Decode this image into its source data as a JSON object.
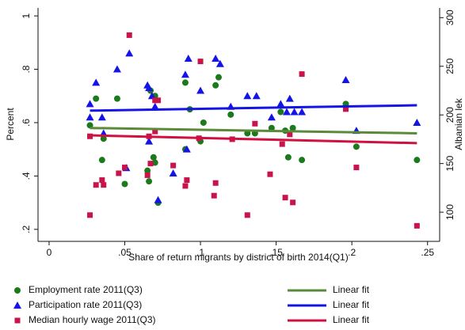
{
  "chart_data": {
    "type": "scatter",
    "xlabel": "Share of return migrants by district of birth 2014(Q1)",
    "ylabel": "Percent",
    "y2label": "Albanian lek",
    "xlim": [
      -0.0073,
      0.258
    ],
    "xticks": [
      0,
      {
        "value": 0.05,
        "label": ".05"
      },
      {
        "value": 0.1,
        "label": ".1"
      },
      {
        "value": 0.15,
        "label": ".15"
      },
      {
        "value": 0.2,
        "label": ".2"
      },
      {
        "value": 0.25,
        "label": ".25"
      }
    ],
    "ylim": [
      0.155,
      1.03
    ],
    "yticks": [
      {
        "value": 0.2,
        "label": ".2"
      },
      {
        "value": 0.4,
        "label": ".4"
      },
      {
        "value": 0.6,
        "label": ".6"
      },
      {
        "value": 0.8,
        "label": ".8"
      },
      1
    ],
    "y2lim": [
      70,
      310
    ],
    "y2ticks": [
      100,
      150,
      200,
      250,
      300
    ],
    "series": [
      {
        "name": "Employment rate 2011(Q3)",
        "color": "#1b7a1b",
        "marker": "circle",
        "axis": "y",
        "x": [
          0.027,
          0.031,
          0.035,
          0.036,
          0.045,
          0.05,
          0.065,
          0.066,
          0.067,
          0.069,
          0.07,
          0.07,
          0.072,
          0.09,
          0.09,
          0.093,
          0.1,
          0.102,
          0.11,
          0.112,
          0.12,
          0.131,
          0.136,
          0.147,
          0.153,
          0.156,
          0.158,
          0.161,
          0.167,
          0.196,
          0.203,
          0.243
        ],
        "values": [
          0.59,
          0.69,
          0.46,
          0.54,
          0.69,
          0.37,
          0.42,
          0.38,
          0.72,
          0.47,
          0.7,
          0.45,
          0.3,
          0.75,
          0.5,
          0.65,
          0.53,
          0.6,
          0.74,
          0.77,
          0.63,
          0.56,
          0.56,
          0.58,
          0.64,
          0.57,
          0.47,
          0.58,
          0.46,
          0.67,
          0.51,
          0.46
        ]
      },
      {
        "name": "Participation rate 2011(Q3)",
        "color": "#1414e6",
        "marker": "triangle",
        "axis": "y",
        "x": [
          0.027,
          0.027,
          0.031,
          0.035,
          0.036,
          0.045,
          0.051,
          0.053,
          0.065,
          0.066,
          0.066,
          0.068,
          0.07,
          0.072,
          0.082,
          0.09,
          0.091,
          0.092,
          0.1,
          0.11,
          0.113,
          0.12,
          0.131,
          0.137,
          0.147,
          0.153,
          0.157,
          0.159,
          0.162,
          0.167,
          0.196,
          0.203,
          0.243
        ],
        "values": [
          0.67,
          0.62,
          0.75,
          0.62,
          0.56,
          0.8,
          0.43,
          0.86,
          0.74,
          0.73,
          0.53,
          0.7,
          0.66,
          0.31,
          0.41,
          0.78,
          0.5,
          0.84,
          0.72,
          0.84,
          0.82,
          0.66,
          0.7,
          0.7,
          0.62,
          0.67,
          0.64,
          0.69,
          0.64,
          0.64,
          0.76,
          0.57,
          0.6
        ]
      },
      {
        "name": "Median hourly wage 2011(Q3)",
        "color": "#c8144b",
        "marker": "square",
        "axis": "y2",
        "x": [
          0.027,
          0.027,
          0.031,
          0.035,
          0.036,
          0.046,
          0.05,
          0.053,
          0.065,
          0.066,
          0.067,
          0.07,
          0.07,
          0.072,
          0.082,
          0.09,
          0.091,
          0.099,
          0.1,
          0.109,
          0.11,
          0.121,
          0.131,
          0.136,
          0.146,
          0.154,
          0.156,
          0.159,
          0.161,
          0.167,
          0.196,
          0.203,
          0.243
        ],
        "values": [
          97,
          178,
          128,
          133,
          128,
          140,
          146,
          282,
          138,
          178,
          150,
          215,
          183,
          215,
          148,
          127,
          133,
          176,
          255,
          117,
          130,
          175,
          97,
          191,
          139,
          170,
          115,
          180,
          110,
          242,
          206,
          146,
          86
        ]
      },
      {
        "name": "Linear fit",
        "color": "#5a8a3a",
        "marker": "line",
        "axis": "y",
        "x": [
          0.027,
          0.243
        ],
        "values": [
          0.58,
          0.56
        ]
      },
      {
        "name": "Linear fit",
        "color": "#1414e6",
        "marker": "line",
        "axis": "y",
        "x": [
          0.027,
          0.243
        ],
        "values": [
          0.645,
          0.665
        ]
      },
      {
        "name": "Linear fit",
        "color": "#d01040",
        "marker": "line",
        "axis": "y2",
        "x": [
          0.027,
          0.243
        ],
        "values": [
          179,
          171
        ]
      }
    ]
  }
}
